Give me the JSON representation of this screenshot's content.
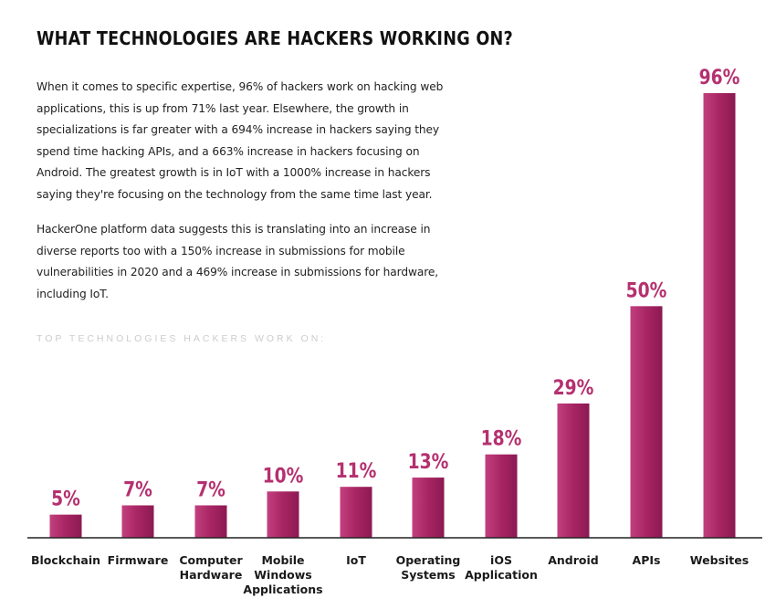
{
  "header": {
    "title": "WHAT TECHNOLOGIES ARE HACKERS WORKING ON?"
  },
  "body": {
    "paragraph1": "When it comes to specific expertise, 96% of hackers work on hacking web applications, this is up from 71% last year. Elsewhere, the growth in specializations is far greater with a 694% increase in hackers saying they spend time hacking APIs, and a 663% increase in hackers focusing on Android. The greatest growth is in IoT with a 1000% increase in hackers saying they're focusing on the technology from the same time last year.",
    "paragraph2": "HackerOne platform data suggests this is translating into an increase in diverse reports too with a 150% increase in submissions for mobile vulnerabilities in 2020 and a 469% increase in submissions for hardware, including IoT."
  },
  "chart_data": {
    "type": "bar",
    "subtitle": "TOP TECHNOLOGIES HACKERS WORK ON:",
    "categories": [
      [
        "Blockchain"
      ],
      [
        "Firmware"
      ],
      [
        "Computer",
        "Hardware"
      ],
      [
        "Mobile",
        "Windows",
        "Applications"
      ],
      [
        "IoT"
      ],
      [
        "Operating",
        "Systems"
      ],
      [
        "iOS",
        "Application"
      ],
      [
        "Android"
      ],
      [
        "APIs"
      ],
      [
        "Websites"
      ]
    ],
    "values": [
      5,
      7,
      7,
      10,
      11,
      13,
      18,
      29,
      50,
      96
    ],
    "value_labels": [
      "5%",
      "7%",
      "7%",
      "10%",
      "11%",
      "13%",
      "18%",
      "29%",
      "50%",
      "96%"
    ],
    "ylim": [
      0,
      100
    ],
    "grid": false,
    "legend": false,
    "colors": {
      "bar_light": "#c2407f",
      "bar_dark": "#8c1a52",
      "label": "#b5306f",
      "baseline": "#222222"
    }
  }
}
